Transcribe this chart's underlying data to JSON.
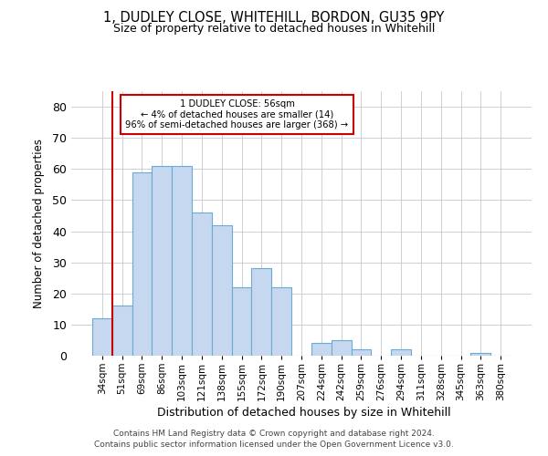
{
  "title1": "1, DUDLEY CLOSE, WHITEHILL, BORDON, GU35 9PY",
  "title2": "Size of property relative to detached houses in Whitehill",
  "xlabel": "Distribution of detached houses by size in Whitehill",
  "ylabel": "Number of detached properties",
  "bar_labels": [
    "34sqm",
    "51sqm",
    "69sqm",
    "86sqm",
    "103sqm",
    "121sqm",
    "138sqm",
    "155sqm",
    "172sqm",
    "190sqm",
    "207sqm",
    "224sqm",
    "242sqm",
    "259sqm",
    "276sqm",
    "294sqm",
    "311sqm",
    "328sqm",
    "345sqm",
    "363sqm",
    "380sqm"
  ],
  "bar_values": [
    12,
    16,
    59,
    61,
    61,
    46,
    42,
    22,
    28,
    22,
    0,
    4,
    5,
    2,
    0,
    2,
    0,
    0,
    0,
    1,
    0
  ],
  "bar_color": "#c5d8f0",
  "bar_edge_color": "#6aaad4",
  "ylim": [
    0,
    85
  ],
  "yticks": [
    0,
    10,
    20,
    30,
    40,
    50,
    60,
    70,
    80
  ],
  "vline_x_idx": 1,
  "vline_color": "#cc0000",
  "annotation_text": "1 DUDLEY CLOSE: 56sqm\n← 4% of detached houses are smaller (14)\n96% of semi-detached houses are larger (368) →",
  "annotation_box_color": "#ffffff",
  "annotation_box_edge": "#cc0000",
  "footer1": "Contains HM Land Registry data © Crown copyright and database right 2024.",
  "footer2": "Contains public sector information licensed under the Open Government Licence v3.0.",
  "background_color": "#ffffff",
  "grid_color": "#c8c8d0"
}
